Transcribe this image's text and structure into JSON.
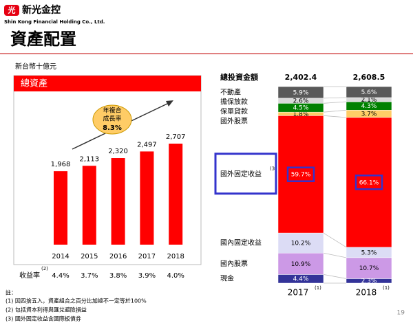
{
  "header": {
    "logo_char": "光",
    "company": "新光金控",
    "company_en": "Shin Kong Financial Holding Co., Ltd."
  },
  "title": "資產配置",
  "unit": "新台幣十億元",
  "chart_data": [
    {
      "type": "bar",
      "title": "總資產",
      "categories": [
        "2014",
        "2015",
        "2016",
        "2017",
        "2018"
      ],
      "values": [
        1968,
        2113,
        2320,
        2497,
        2707
      ],
      "value_labels": [
        "1,968",
        "2,113",
        "2,320",
        "2,497",
        "2,707"
      ],
      "color": "#ff0000",
      "annotation": [
        "年複合",
        "成長率",
        "8.3%"
      ]
    },
    {
      "type": "stacked_bar_100",
      "total_label": "總投資金額",
      "totals": [
        2402.4,
        2608.5
      ],
      "total_labels": [
        "2,402.4",
        "2,608.5"
      ],
      "categories": [
        "2017",
        "2018"
      ],
      "category_notes": [
        "(1)",
        "(1)"
      ],
      "series": [
        {
          "name": "現金",
          "color": "#333399",
          "values": [
            4.4,
            2.3
          ],
          "value_labels": [
            "4.4%",
            "2.3%"
          ]
        },
        {
          "name": "國內股票",
          "color": "#cc99e6",
          "values": [
            10.9,
            10.7
          ],
          "value_labels": [
            "10.9%",
            "10.7%"
          ]
        },
        {
          "name": "國內固定收益",
          "color": "#dcdcf5",
          "values": [
            10.2,
            5.3
          ],
          "value_labels": [
            "10.2%",
            "5.3%"
          ]
        },
        {
          "name": "國外固定收益",
          "note": "(3",
          "highlight": true,
          "color": "#ff0000",
          "values": [
            59.7,
            66.1
          ],
          "value_labels": [
            "59.7%",
            "66.1%"
          ]
        },
        {
          "name": "國外股票",
          "color": "#ffcc66",
          "values": [
            1.8,
            3.7
          ],
          "value_labels": [
            "1.8%",
            "3.7%"
          ]
        },
        {
          "name": "保單貸款",
          "color": "#008000",
          "values": [
            4.5,
            4.3
          ],
          "value_labels": [
            "4.5%",
            "4.3%"
          ]
        },
        {
          "name": "擔保放款",
          "color": "#d9d9d9",
          "values": [
            2.6,
            2.1
          ],
          "value_labels": [
            "2.6%",
            "2.1%"
          ]
        },
        {
          "name": "不動產",
          "color": "#595959",
          "values": [
            5.9,
            5.6
          ],
          "value_labels": [
            "5.9%",
            "5.6%"
          ]
        }
      ]
    }
  ],
  "yield_row": {
    "label": "收益率",
    "note": "(2)",
    "values": [
      "4.4%",
      "3.7%",
      "3.8%",
      "3.9%",
      "4.0%"
    ]
  },
  "footnotes": [
    "註：",
    "(1) 因四捨五入，資產組合之百分比加總不一定等於100%",
    "(2) 包括資本利得與匯兌避險損益",
    "(3) 國外固定收益含國際板債券"
  ],
  "page_number": "19"
}
